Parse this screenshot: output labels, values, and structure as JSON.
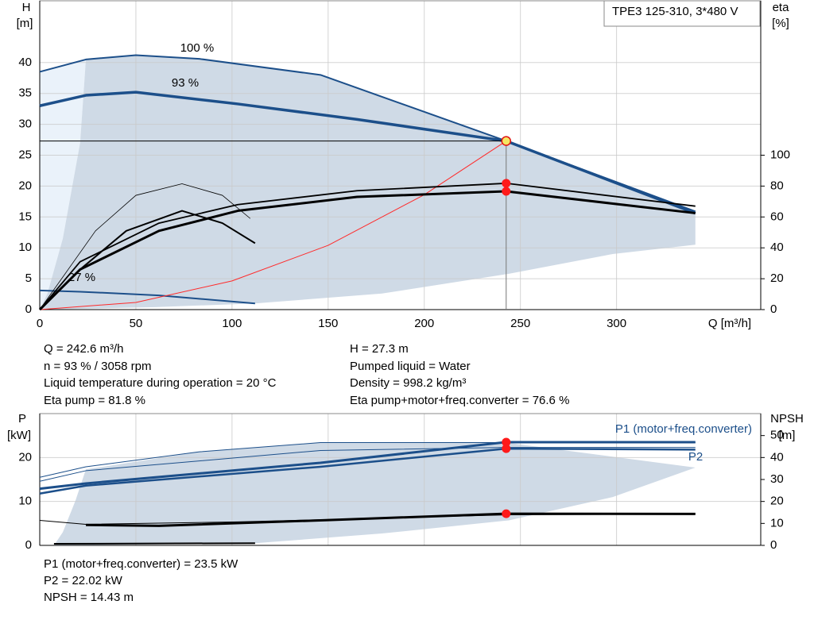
{
  "chart_data": [
    {
      "type": "line",
      "title": "TPE3 125-310, 3*480 V",
      "x_label": "Q [m³/h]",
      "y_label": [
        "H",
        "[m]"
      ],
      "y2_label": [
        "eta",
        "[%]"
      ],
      "xlim": [
        0,
        375
      ],
      "xticks": [
        0,
        50,
        100,
        150,
        200,
        250,
        300
      ],
      "show_xtick_labels": true,
      "ylim": [
        0,
        50
      ],
      "yticks": [
        0,
        5,
        10,
        15,
        20,
        25,
        30,
        35,
        40
      ],
      "y2lim": [
        0,
        200
      ],
      "y2ticks": [
        0,
        20,
        40,
        60,
        80,
        100
      ],
      "grid": true,
      "series": [
        {
          "kind": "area",
          "color": "#eaf2fa",
          "x": [
            0,
            0,
            24,
            21,
            12,
            4
          ],
          "values": [
            0,
            38.5,
            40.5,
            27,
            11.5,
            2.6
          ]
        },
        {
          "kind": "area",
          "color": "#cfdae6",
          "x": [
            4,
            12,
            21,
            24,
            50,
            83,
            146,
            242.6,
            341,
            341,
            298,
            244,
            178,
            112,
            60,
            0
          ],
          "values": [
            2.6,
            11.5,
            27,
            40.5,
            41.2,
            40.6,
            38,
            27.3,
            15.9,
            10.5,
            9,
            5.8,
            2.6,
            1.0,
            0.4,
            0
          ]
        },
        {
          "kind": "line",
          "name": "100 %",
          "color": "#1c4f8a",
          "width": 2,
          "x": [
            0,
            24,
            50,
            83,
            146,
            242.6,
            341
          ],
          "values": [
            38.5,
            40.5,
            41.2,
            40.6,
            38,
            27.3,
            15.9
          ]
        },
        {
          "kind": "line",
          "name": "93 %",
          "color": "#1c4f8a",
          "width": 3.5,
          "x": [
            0,
            24,
            50,
            103,
            165,
            242.6,
            341
          ],
          "values": [
            33,
            34.7,
            35.2,
            33.3,
            30.8,
            27.3,
            15.6
          ]
        },
        {
          "kind": "line",
          "name": "27 %",
          "color": "#1c4f8a",
          "width": 2,
          "x": [
            0,
            21,
            62,
            112
          ],
          "values": [
            3.1,
            2.9,
            2.3,
            1.0
          ]
        },
        {
          "kind": "line",
          "color": "#ff2a2a",
          "width": 1,
          "x": [
            0,
            50,
            100,
            150,
            200,
            242.6
          ],
          "values": [
            0,
            1.16,
            4.64,
            10.4,
            18.6,
            27.3
          ]
        },
        {
          "kind": "line",
          "axis": "y2",
          "color": "#000000",
          "width": 0.8,
          "x": [
            0,
            29,
            50,
            74,
            95,
            109.5
          ],
          "values": [
            0,
            51,
            74,
            81.5,
            74,
            59
          ]
        },
        {
          "kind": "line",
          "axis": "y2",
          "color": "#000000",
          "width": 2,
          "x": [
            0,
            21,
            45,
            74,
            95,
            112
          ],
          "values": [
            0,
            26,
            51,
            64,
            56,
            43
          ]
        },
        {
          "kind": "line",
          "axis": "y2",
          "color": "#000000",
          "width": 1.8,
          "x": [
            0,
            21,
            62,
            103,
            165,
            242.6,
            341
          ],
          "values": [
            0,
            31,
            56,
            68,
            77,
            81.8,
            67
          ]
        },
        {
          "kind": "line",
          "axis": "y2",
          "color": "#000000",
          "width": 3,
          "x": [
            0,
            21,
            62,
            103,
            165,
            242.6,
            341
          ],
          "values": [
            0,
            26,
            51,
            64,
            73,
            76.6,
            62.5
          ]
        }
      ],
      "points": [
        {
          "x": 242.6,
          "y": 27.3,
          "axis": "y",
          "color": "#f5e663",
          "drop_lines": true
        },
        {
          "x": 242.6,
          "y": 81.8,
          "axis": "y2",
          "color": "#ff1a1a"
        },
        {
          "x": 242.6,
          "y": 76.6,
          "axis": "y2",
          "color": "#ff1a1a"
        }
      ]
    },
    {
      "type": "line",
      "y_label": [
        "P",
        "[kW]"
      ],
      "y2_label": [
        "NPSH",
        "[m]"
      ],
      "xlim": [
        0,
        375
      ],
      "xticks": [
        0,
        50,
        100,
        150,
        200,
        250,
        300
      ],
      "show_xtick_labels": false,
      "ylim": [
        0,
        30
      ],
      "yticks": [
        0,
        10,
        20
      ],
      "y2lim": [
        0,
        60
      ],
      "y2ticks": [
        0,
        10,
        20,
        30,
        40,
        50
      ],
      "grid": true,
      "series": [
        {
          "kind": "area",
          "color": "#cfdae6",
          "x": [
            7.4,
            12,
            18.6,
            24,
            83,
            146,
            242.6,
            341,
            298,
            244,
            178,
            112
          ],
          "values": [
            0,
            3,
            10.2,
            17.3,
            21.3,
            23.4,
            23.4,
            17.7,
            11,
            5.7,
            2.7,
            0.5
          ]
        },
        {
          "kind": "line",
          "color": "#1c4f8a",
          "width": 1,
          "x": [
            0,
            24,
            83,
            146,
            242.6,
            341
          ],
          "values": [
            15.5,
            17.9,
            21.3,
            23.4,
            23.4,
            23.4
          ]
        },
        {
          "kind": "line",
          "color": "#1c4f8a",
          "width": 1,
          "x": [
            0,
            24,
            146,
            242.6,
            341
          ],
          "values": [
            14.6,
            17,
            21.6,
            22.3,
            22.3
          ]
        },
        {
          "kind": "line",
          "name": "P1 (motor+freq.converter)",
          "color": "#1c4f8a",
          "width": 3,
          "x": [
            0,
            24,
            146,
            242.6,
            341
          ],
          "values": [
            12.9,
            14.1,
            18.8,
            23.5,
            23.5
          ]
        },
        {
          "kind": "line",
          "name": "P2",
          "color": "#1c4f8a",
          "width": 2.5,
          "x": [
            0,
            24,
            146,
            242.6,
            341
          ],
          "values": [
            11.8,
            13.6,
            17.9,
            22.02,
            21.8
          ]
        },
        {
          "kind": "line",
          "axis": "y2",
          "color": "#000000",
          "width": 1,
          "x": [
            0,
            24,
            103,
            242.6,
            341
          ],
          "values": [
            11.4,
            9.6,
            10.7,
            13.9,
            14.3
          ]
        },
        {
          "kind": "line",
          "axis": "y2",
          "color": "#000000",
          "width": 3,
          "x": [
            24,
            62,
            146,
            242.6,
            341
          ],
          "values": [
            9.3,
            8.9,
            11.4,
            14.43,
            14.3
          ]
        },
        {
          "kind": "line",
          "color": "#000000",
          "width": 2,
          "x": [
            7.4,
            112
          ],
          "values": [
            0.36,
            0.5
          ]
        }
      ],
      "points": [
        {
          "x": 242.6,
          "y": 23.5,
          "axis": "y",
          "color": "#ff1a1a"
        },
        {
          "x": 242.6,
          "y": 22.02,
          "axis": "y",
          "color": "#ff1a1a"
        },
        {
          "x": 242.6,
          "y": 14.43,
          "axis": "y2",
          "color": "#ff1a1a"
        }
      ]
    }
  ],
  "info": {
    "left": [
      "Q = 242.6 m³/h",
      "n = 93 % / 3058 rpm",
      "Liquid temperature during operation = 20 °C",
      "Eta pump = 81.8 %"
    ],
    "right": [
      "H = 27.3 m",
      "Pumped liquid = Water",
      "Density = 998.2 kg/m³",
      "Eta pump+motor+freq.converter = 76.6 %"
    ],
    "power": [
      "P1 (motor+freq.converter) = 23.5 kW",
      "P2 = 22.02 kW",
      "NPSH = 14.43 m"
    ]
  }
}
